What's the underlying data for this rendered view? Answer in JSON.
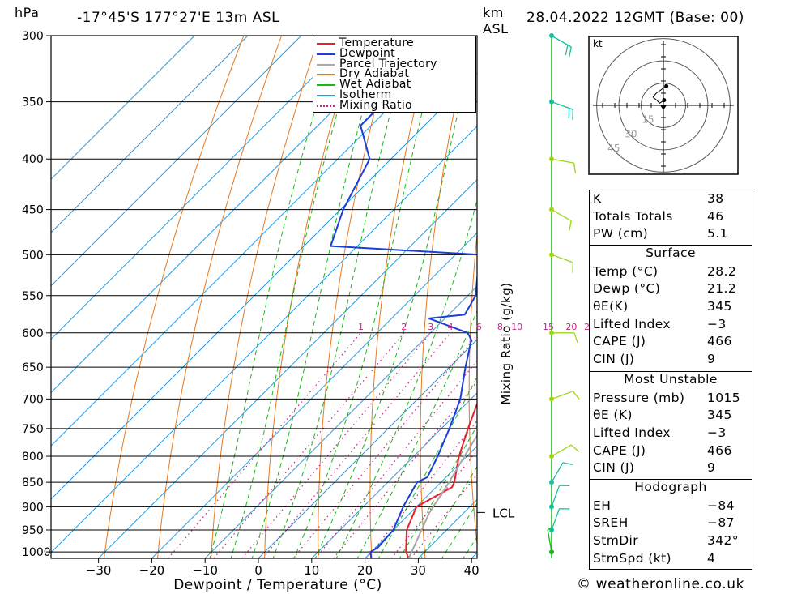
{
  "header": {
    "unit_left": "hPa",
    "location": "-17°45'S  177°27'E  13m  ASL",
    "unit_km": "km",
    "unit_asl": "ASL",
    "datetime": "28.04.2022  12GMT  (Base: 00)"
  },
  "colors": {
    "temperature": "#e8202a",
    "dewpoint": "#1a3fd8",
    "parcel": "#a8a8a8",
    "dry_adiabat": "#e8781e",
    "wet_adiabat": "#18b818",
    "isotherm": "#1e9be6",
    "mixing_ratio": "#d0208c"
  },
  "legend": [
    {
      "label": "Temperature",
      "color": "#e8202a",
      "style": "solid"
    },
    {
      "label": "Dewpoint",
      "color": "#1a3fd8",
      "style": "solid"
    },
    {
      "label": "Parcel Trajectory",
      "color": "#a8a8a8",
      "style": "solid"
    },
    {
      "label": "Dry Adiabat",
      "color": "#e8781e",
      "style": "solid"
    },
    {
      "label": "Wet Adiabat",
      "color": "#18b818",
      "style": "solid"
    },
    {
      "label": "Isotherm",
      "color": "#1e9be6",
      "style": "solid"
    },
    {
      "label": "Mixing Ratio",
      "color": "#d0208c",
      "style": "dotted"
    }
  ],
  "chart_data": {
    "type": "line",
    "xlabel": "Dewpoint / Temperature (°C)",
    "ylabel": "",
    "mixing_ratio_axis_label": "Mixing Ratio (g/kg)",
    "pressure_levels": [
      300,
      350,
      400,
      450,
      500,
      550,
      600,
      650,
      700,
      750,
      800,
      850,
      900,
      950,
      1000
    ],
    "xticks": [
      -30,
      -20,
      -10,
      0,
      10,
      20,
      30,
      40
    ],
    "xlim": [
      -40,
      40
    ],
    "ylim": [
      1015,
      300
    ],
    "mixing_ratio_labels": [
      "1",
      "2",
      "3",
      "4",
      "6",
      "8",
      "10",
      "15",
      "20",
      "25"
    ],
    "mixing_ratio_values": [
      1,
      2,
      3,
      4,
      6,
      8,
      10,
      15,
      20,
      25
    ],
    "lcl_label": "LCL",
    "lcl_pressure": 912,
    "series": [
      {
        "name": "Temperature",
        "points": [
          [
            1015,
            28.2
          ],
          [
            1000,
            26.5
          ],
          [
            950,
            22.5
          ],
          [
            900,
            20.0
          ],
          [
            860,
            23.0
          ],
          [
            850,
            22.5
          ],
          [
            800,
            18.5
          ],
          [
            750,
            15.0
          ],
          [
            700,
            11.5
          ],
          [
            650,
            7.0
          ],
          [
            610,
            2.0
          ],
          [
            600,
            1.0
          ],
          [
            585,
            1.5
          ],
          [
            550,
            -3.0
          ],
          [
            500,
            -9.0
          ],
          [
            485,
            -7.0
          ],
          [
            450,
            -12.0
          ],
          [
            400,
            -20.5
          ],
          [
            350,
            -29.0
          ],
          [
            300,
            -39.5
          ]
        ]
      },
      {
        "name": "Dewpoint",
        "points": [
          [
            1015,
            21.2
          ],
          [
            1000,
            19.8
          ],
          [
            990,
            20.4
          ],
          [
            950,
            20.0
          ],
          [
            900,
            17.5
          ],
          [
            850,
            15.5
          ],
          [
            840,
            16.5
          ],
          [
            800,
            14.5
          ],
          [
            750,
            11.5
          ],
          [
            700,
            8.0
          ],
          [
            650,
            3.0
          ],
          [
            610,
            -1.0
          ],
          [
            600,
            -3.0
          ],
          [
            580,
            -13.0
          ],
          [
            575,
            -7.0
          ],
          [
            550,
            -8.5
          ],
          [
            500,
            -15.5
          ],
          [
            490,
            -45.0
          ],
          [
            450,
            -49.5
          ],
          [
            400,
            -54.0
          ],
          [
            370,
            -62.0
          ],
          [
            350,
            -62.0
          ],
          [
            300,
            -64.0
          ]
        ]
      },
      {
        "name": "Parcel Trajectory",
        "points": [
          [
            1015,
            28.2
          ],
          [
            912,
            23.5
          ],
          [
            850,
            21.5
          ],
          [
            800,
            19.5
          ],
          [
            750,
            17.5
          ],
          [
            700,
            15.2
          ],
          [
            650,
            12.5
          ],
          [
            600,
            9.5
          ],
          [
            550,
            5.5
          ],
          [
            500,
            1.0
          ],
          [
            450,
            -4.5
          ],
          [
            400,
            -11.5
          ],
          [
            370,
            -16.5
          ],
          [
            360,
            -18.5
          ]
        ]
      }
    ],
    "dry_adiabats_theta_c": [
      -30,
      -20,
      -10,
      0,
      10,
      20,
      30,
      40,
      50,
      60,
      70,
      80,
      90,
      100,
      110,
      120,
      130,
      140,
      150,
      160,
      170,
      180
    ],
    "wet_adiabats_t1000_c": [
      -10,
      -6,
      -2,
      2,
      6,
      10,
      14,
      18,
      22,
      26,
      30,
      34,
      38
    ],
    "isotherms_c": [
      -110,
      -100,
      -90,
      -80,
      -70,
      -60,
      -50,
      -40,
      -30,
      -20,
      -10,
      0,
      10,
      20,
      30,
      40
    ]
  },
  "wind_profile": [
    {
      "p": 1000,
      "dir": 350,
      "spd": 8
    },
    {
      "p": 950,
      "dir": 20,
      "spd": 12
    },
    {
      "p": 900,
      "dir": 20,
      "spd": 14
    },
    {
      "p": 850,
      "dir": 30,
      "spd": 12
    },
    {
      "p": 800,
      "dir": 60,
      "spd": 10
    },
    {
      "p": 700,
      "dir": 70,
      "spd": 10
    },
    {
      "p": 600,
      "dir": 90,
      "spd": 12
    },
    {
      "p": 500,
      "dir": 110,
      "spd": 12
    },
    {
      "p": 450,
      "dir": 120,
      "spd": 10
    },
    {
      "p": 400,
      "dir": 100,
      "spd": 14
    },
    {
      "p": 350,
      "dir": 110,
      "spd": 24
    },
    {
      "p": 300,
      "dir": 120,
      "spd": 20
    }
  ],
  "hodograph": {
    "unit_label": "kt",
    "ring_labels": [
      "15",
      "30",
      "45"
    ],
    "ring_values": [
      15,
      30,
      45
    ],
    "trace": [
      [
        0.5,
        3.5
      ],
      [
        -2.5,
        1.5
      ],
      [
        -4.5,
        3.5
      ],
      [
        -7.0,
        5.5
      ],
      [
        -5.0,
        8.0
      ],
      [
        -3.0,
        9.5
      ],
      [
        2.0,
        13.0
      ]
    ],
    "storm_motion": [
      0.0,
      -1.0
    ]
  },
  "indices": {
    "rows": [
      {
        "key": "K",
        "value": "38"
      },
      {
        "key": "Totals Totals",
        "value": "46"
      },
      {
        "key": "PW (cm)",
        "value": "5.1"
      }
    ]
  },
  "surface": {
    "title": "Surface",
    "rows": [
      {
        "key": "Temp (°C)",
        "value": "28.2"
      },
      {
        "key": "Dewp (°C)",
        "value": "21.2"
      },
      {
        "key": "θE(K)",
        "value": "345"
      },
      {
        "key": "Lifted Index",
        "value": "-3"
      },
      {
        "key": "CAPE (J)",
        "value": "466"
      },
      {
        "key": "CIN (J)",
        "value": "9"
      }
    ]
  },
  "most_unstable": {
    "title": "Most Unstable",
    "rows": [
      {
        "key": "Pressure (mb)",
        "value": "1015"
      },
      {
        "key": "θE (K)",
        "value": "345"
      },
      {
        "key": "Lifted Index",
        "value": "-3"
      },
      {
        "key": "CAPE (J)",
        "value": "466"
      },
      {
        "key": "CIN (J)",
        "value": "9"
      }
    ]
  },
  "hodograph_table": {
    "title": "Hodograph",
    "rows": [
      {
        "key": "EH",
        "value": "-84"
      },
      {
        "key": "SREH",
        "value": "-87"
      },
      {
        "key": "StmDir",
        "value": "342°"
      },
      {
        "key": "StmSpd (kt)",
        "value": "4"
      }
    ]
  },
  "footer": {
    "copyright": "© weatheronline.co.uk"
  }
}
